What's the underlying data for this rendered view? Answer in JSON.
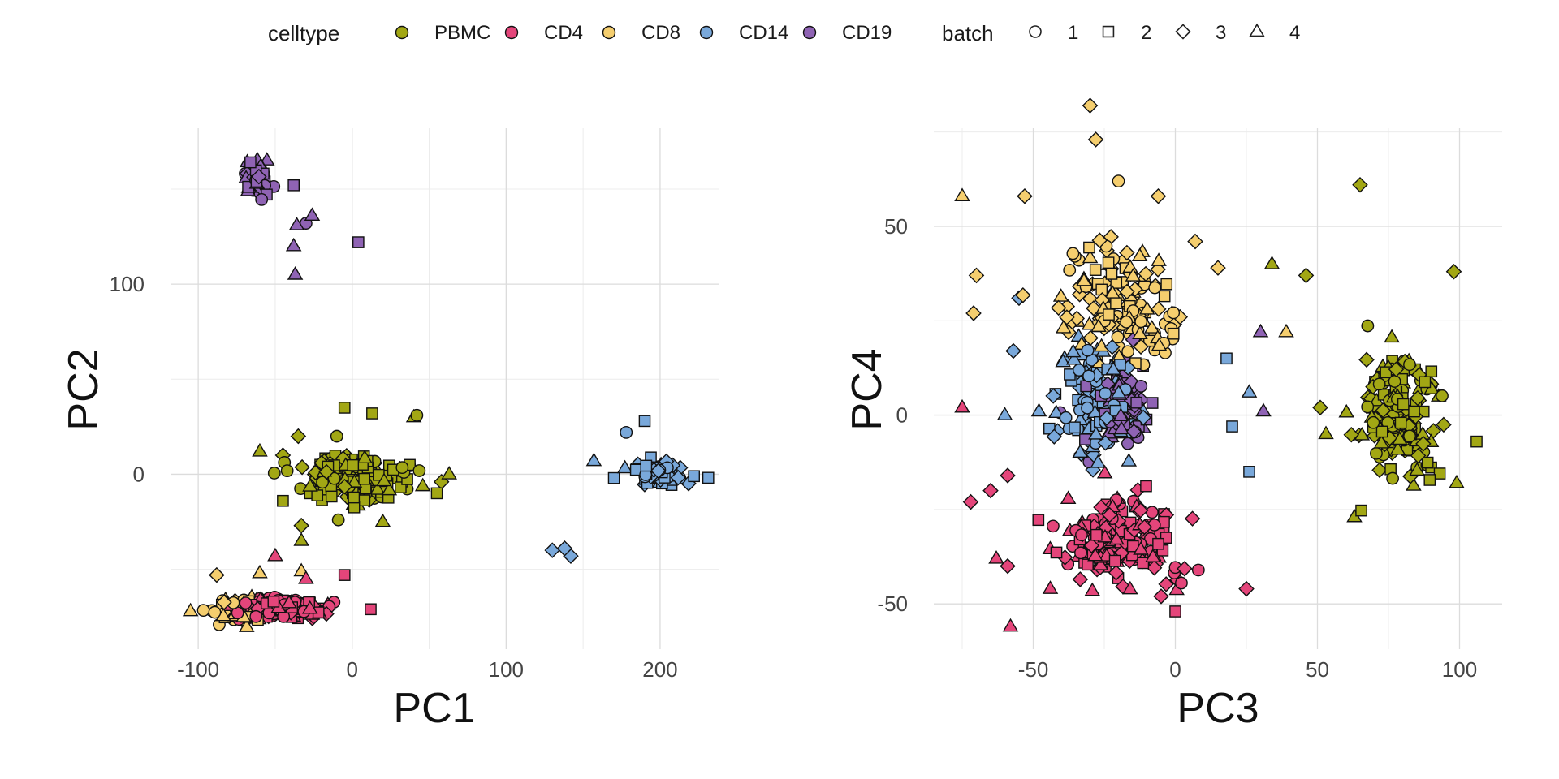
{
  "legend": {
    "celltype_title": "celltype",
    "batch_title": "batch",
    "celltypes": [
      {
        "label": "PBMC",
        "color": "#A2A714"
      },
      {
        "label": "CD4",
        "color": "#E4457A"
      },
      {
        "label": "CD8",
        "color": "#F5CE6E"
      },
      {
        "label": "CD14",
        "color": "#79A8DA"
      },
      {
        "label": "CD19",
        "color": "#8F63B4"
      }
    ],
    "batches": [
      {
        "label": "1",
        "shape": "circle"
      },
      {
        "label": "2",
        "shape": "square"
      },
      {
        "label": "3",
        "shape": "diamond"
      },
      {
        "label": "4",
        "shape": "triangle"
      }
    ]
  },
  "chart_data": [
    {
      "type": "scatter",
      "title": "",
      "xlabel": "PC1",
      "ylabel": "PC2",
      "xlim": [
        -118,
        238
      ],
      "ylim": [
        -92,
        182
      ],
      "xticks": [
        -100,
        0,
        100,
        200
      ],
      "yticks": [
        0,
        100
      ],
      "xtick_labels": [
        "-100",
        "0",
        "100",
        "200"
      ],
      "ytick_labels": [
        "0",
        "100"
      ],
      "grid": true,
      "clusters": [
        {
          "celltype": "PBMC",
          "cx": 0,
          "cy": -3,
          "sx": 22,
          "sy": 9,
          "n": 200
        },
        {
          "celltype": "CD4",
          "cx": -50,
          "cy": -70,
          "sx": 20,
          "sy": 4,
          "n": 180
        },
        {
          "celltype": "CD8",
          "cx": -75,
          "cy": -71,
          "sx": 14,
          "sy": 4,
          "n": 70
        },
        {
          "celltype": "CD14",
          "cx": 198,
          "cy": 1,
          "sx": 10,
          "sy": 4,
          "n": 90
        },
        {
          "celltype": "CD19",
          "cx": -62,
          "cy": 155,
          "sx": 5,
          "sy": 6,
          "n": 90
        }
      ],
      "points": [
        {
          "x": 130,
          "y": -40,
          "celltype": "CD14",
          "batch": "3"
        },
        {
          "x": 138,
          "y": -39,
          "celltype": "CD14",
          "batch": "3"
        },
        {
          "x": 142,
          "y": -43,
          "celltype": "CD14",
          "batch": "3"
        },
        {
          "x": 157,
          "y": 7,
          "celltype": "CD14",
          "batch": "4"
        },
        {
          "x": 170,
          "y": -2,
          "celltype": "CD14",
          "batch": "2"
        },
        {
          "x": 178,
          "y": 22,
          "celltype": "CD14",
          "batch": "1"
        },
        {
          "x": 190,
          "y": 28,
          "celltype": "CD14",
          "batch": "2"
        },
        {
          "x": 222,
          "y": -1,
          "celltype": "CD14",
          "batch": "2"
        },
        {
          "x": -38,
          "y": 152,
          "celltype": "CD19",
          "batch": "2"
        },
        {
          "x": -38,
          "y": 120,
          "celltype": "CD19",
          "batch": "4"
        },
        {
          "x": -36,
          "y": 131,
          "celltype": "CD19",
          "batch": "4"
        },
        {
          "x": -30,
          "y": 132,
          "celltype": "CD19",
          "batch": "1"
        },
        {
          "x": -26,
          "y": 136,
          "celltype": "CD19",
          "batch": "4"
        },
        {
          "x": -37,
          "y": 105,
          "celltype": "CD19",
          "batch": "4"
        },
        {
          "x": 4,
          "y": 122,
          "celltype": "CD19",
          "batch": "2"
        },
        {
          "x": -60,
          "y": 12,
          "celltype": "PBMC",
          "batch": "4"
        },
        {
          "x": -45,
          "y": 10,
          "celltype": "PBMC",
          "batch": "3"
        },
        {
          "x": -35,
          "y": 20,
          "celltype": "PBMC",
          "batch": "3"
        },
        {
          "x": -45,
          "y": -14,
          "celltype": "PBMC",
          "batch": "2"
        },
        {
          "x": -33,
          "y": -27,
          "celltype": "PBMC",
          "batch": "3"
        },
        {
          "x": -33,
          "y": -35,
          "celltype": "PBMC",
          "batch": "4"
        },
        {
          "x": -10,
          "y": 20,
          "celltype": "PBMC",
          "batch": "1"
        },
        {
          "x": -5,
          "y": 35,
          "celltype": "PBMC",
          "batch": "2"
        },
        {
          "x": 13,
          "y": 32,
          "celltype": "PBMC",
          "batch": "2"
        },
        {
          "x": 40,
          "y": 30,
          "celltype": "PBMC",
          "batch": "4"
        },
        {
          "x": 42,
          "y": 31,
          "celltype": "PBMC",
          "batch": "1"
        },
        {
          "x": -9,
          "y": -24,
          "celltype": "PBMC",
          "batch": "1"
        },
        {
          "x": 58,
          "y": -4,
          "celltype": "PBMC",
          "batch": "3"
        },
        {
          "x": 63,
          "y": 0,
          "celltype": "PBMC",
          "batch": "4"
        },
        {
          "x": 55,
          "y": -10,
          "celltype": "PBMC",
          "batch": "2"
        },
        {
          "x": -50,
          "y": -43,
          "celltype": "CD4",
          "batch": "4"
        },
        {
          "x": -5,
          "y": -53,
          "celltype": "CD4",
          "batch": "2"
        },
        {
          "x": 12,
          "y": -71,
          "celltype": "CD4",
          "batch": "2"
        },
        {
          "x": -30,
          "y": -55,
          "celltype": "CD4",
          "batch": "4"
        },
        {
          "x": -33,
          "y": -51,
          "celltype": "CD8",
          "batch": "4"
        },
        {
          "x": -60,
          "y": -52,
          "celltype": "CD8",
          "batch": "4"
        },
        {
          "x": -88,
          "y": -53,
          "celltype": "CD8",
          "batch": "3"
        },
        {
          "x": -105,
          "y": -72,
          "celltype": "CD8",
          "batch": "4"
        }
      ]
    },
    {
      "type": "scatter",
      "title": "",
      "xlabel": "PC3",
      "ylabel": "PC4",
      "xlim": [
        -85,
        115
      ],
      "ylim": [
        -62,
        76
      ],
      "xticks": [
        -50,
        0,
        50,
        100
      ],
      "yticks": [
        -50,
        0,
        50
      ],
      "xtick_labels": [
        "-50",
        "0",
        "50",
        "100"
      ],
      "ytick_labels": [
        "-50",
        "0",
        "50"
      ],
      "grid": true,
      "clusters": [
        {
          "celltype": "PBMC",
          "cx": 78,
          "cy": 0,
          "sx": 10,
          "sy": 12,
          "n": 170
        },
        {
          "celltype": "CD4",
          "cx": -20,
          "cy": -33,
          "sx": 15,
          "sy": 8,
          "n": 170
        },
        {
          "celltype": "CD8",
          "cx": -20,
          "cy": 28,
          "sx": 15,
          "sy": 11,
          "n": 150
        },
        {
          "celltype": "CD14",
          "cx": -28,
          "cy": 3,
          "sx": 10,
          "sy": 11,
          "n": 120
        },
        {
          "celltype": "CD19",
          "cx": -20,
          "cy": 2,
          "sx": 8,
          "sy": 7,
          "n": 120
        }
      ],
      "points": [
        {
          "x": -75,
          "y": 58,
          "celltype": "CD8",
          "batch": "4"
        },
        {
          "x": -70,
          "y": 37,
          "celltype": "CD8",
          "batch": "3"
        },
        {
          "x": -71,
          "y": 27,
          "celltype": "CD8",
          "batch": "3"
        },
        {
          "x": -30,
          "y": 82,
          "celltype": "CD8",
          "batch": "3"
        },
        {
          "x": -28,
          "y": 73,
          "celltype": "CD8",
          "batch": "3"
        },
        {
          "x": -53,
          "y": 58,
          "celltype": "CD8",
          "batch": "3"
        },
        {
          "x": -20,
          "y": 62,
          "celltype": "CD8",
          "batch": "1"
        },
        {
          "x": -6,
          "y": 58,
          "celltype": "CD8",
          "batch": "3"
        },
        {
          "x": 7,
          "y": 46,
          "celltype": "CD8",
          "batch": "3"
        },
        {
          "x": 15,
          "y": 39,
          "celltype": "CD8",
          "batch": "3"
        },
        {
          "x": 34,
          "y": 40,
          "celltype": "PBMC",
          "batch": "4"
        },
        {
          "x": 39,
          "y": 22,
          "celltype": "CD8",
          "batch": "4"
        },
        {
          "x": 46,
          "y": 37,
          "celltype": "PBMC",
          "batch": "3"
        },
        {
          "x": 65,
          "y": 61,
          "celltype": "PBMC",
          "batch": "3"
        },
        {
          "x": 98,
          "y": 38,
          "celltype": "PBMC",
          "batch": "3"
        },
        {
          "x": 106,
          "y": -7,
          "celltype": "PBMC",
          "batch": "2"
        },
        {
          "x": 99,
          "y": -18,
          "celltype": "PBMC",
          "batch": "4"
        },
        {
          "x": 51,
          "y": 2,
          "celltype": "PBMC",
          "batch": "3"
        },
        {
          "x": 53,
          "y": -5,
          "celltype": "PBMC",
          "batch": "4"
        },
        {
          "x": 63,
          "y": -27,
          "celltype": "PBMC",
          "batch": "4"
        },
        {
          "x": 30,
          "y": 22,
          "celltype": "CD19",
          "batch": "4"
        },
        {
          "x": 31,
          "y": 1,
          "celltype": "CD19",
          "batch": "4"
        },
        {
          "x": 26,
          "y": 6,
          "celltype": "CD14",
          "batch": "4"
        },
        {
          "x": 26,
          "y": -15,
          "celltype": "CD14",
          "batch": "2"
        },
        {
          "x": 20,
          "y": -3,
          "celltype": "CD14",
          "batch": "2"
        },
        {
          "x": 18,
          "y": 15,
          "celltype": "CD14",
          "batch": "2"
        },
        {
          "x": -55,
          "y": 31,
          "celltype": "CD14",
          "batch": "3"
        },
        {
          "x": -60,
          "y": 0,
          "celltype": "CD14",
          "batch": "4"
        },
        {
          "x": -48,
          "y": 1,
          "celltype": "CD14",
          "batch": "4"
        },
        {
          "x": -57,
          "y": 17,
          "celltype": "CD14",
          "batch": "3"
        },
        {
          "x": -75,
          "y": 2,
          "celltype": "CD4",
          "batch": "4"
        },
        {
          "x": -72,
          "y": -23,
          "celltype": "CD4",
          "batch": "3"
        },
        {
          "x": -65,
          "y": -20,
          "celltype": "CD4",
          "batch": "3"
        },
        {
          "x": -59,
          "y": -16,
          "celltype": "CD4",
          "batch": "3"
        },
        {
          "x": -63,
          "y": -38,
          "celltype": "CD4",
          "batch": "4"
        },
        {
          "x": -59,
          "y": -40,
          "celltype": "CD4",
          "batch": "3"
        },
        {
          "x": -58,
          "y": -56,
          "celltype": "CD4",
          "batch": "4"
        },
        {
          "x": -44,
          "y": -46,
          "celltype": "CD4",
          "batch": "4"
        },
        {
          "x": 25,
          "y": -46,
          "celltype": "CD4",
          "batch": "3"
        },
        {
          "x": 0,
          "y": -52,
          "celltype": "CD4",
          "batch": "2"
        },
        {
          "x": -5,
          "y": -48,
          "celltype": "CD4",
          "batch": "3"
        }
      ]
    }
  ]
}
